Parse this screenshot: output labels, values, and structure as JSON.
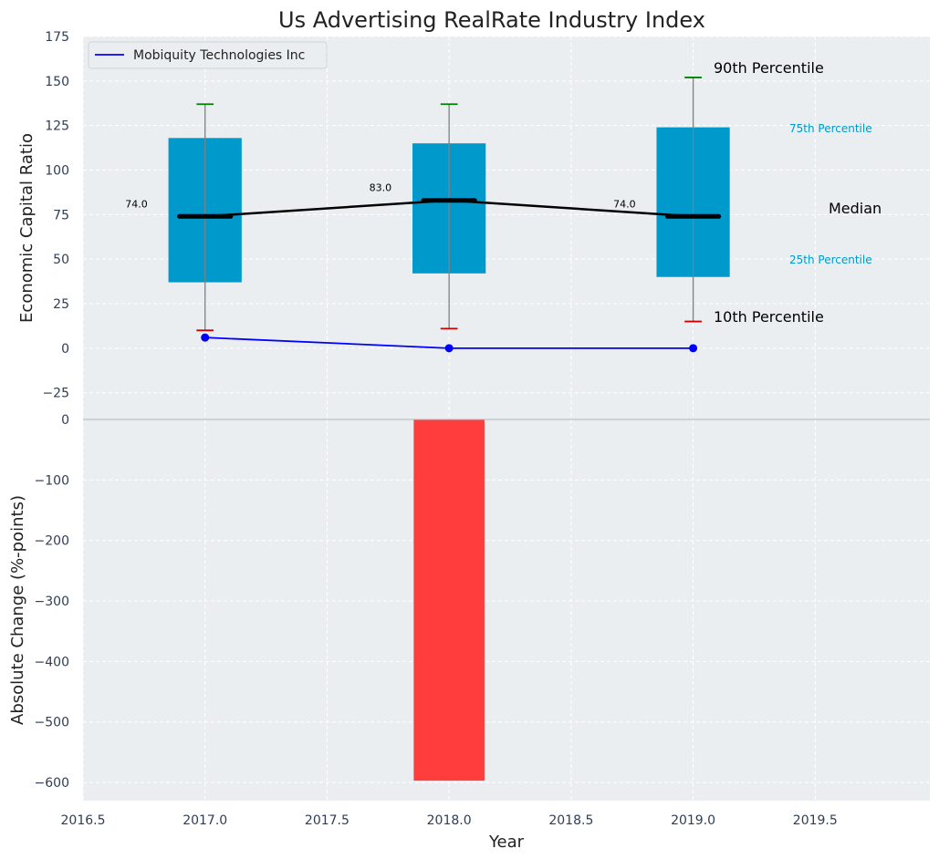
{
  "chart_data": [
    {
      "type": "box",
      "title": "Us Advertising RealRate Industry Index",
      "ylabel": "Economic Capital Ratio",
      "ylim": [
        -40,
        175
      ],
      "yticks": [
        -25,
        0,
        25,
        50,
        75,
        100,
        125,
        150,
        175
      ],
      "grid": true,
      "legend_position": "top-left",
      "boxes": [
        {
          "x": 2017,
          "p10": 10,
          "p25": 37,
          "median": 74,
          "p75": 118,
          "p90": 137,
          "median_label": "74.0"
        },
        {
          "x": 2018,
          "p10": 11,
          "p25": 42,
          "median": 83,
          "p75": 115,
          "p90": 137,
          "median_label": "83.0"
        },
        {
          "x": 2019,
          "p10": 15,
          "p25": 40,
          "median": 74,
          "p75": 124,
          "p90": 152,
          "median_label": "74.0"
        }
      ],
      "series": [
        {
          "name": "Mobiquity Technologies Inc",
          "x": [
            2017,
            2018,
            2019
          ],
          "y": [
            6,
            0,
            0
          ],
          "color": "#0000ff"
        }
      ],
      "annotations": {
        "p90": "90th Percentile",
        "p75": "75th Percentile",
        "median": "Median",
        "p25": "25th Percentile",
        "p10": "10th Percentile"
      },
      "colors": {
        "box": "#0099cc",
        "p90_cap": "#008000",
        "p10_cap": "#cc0000",
        "median_line": "#000000",
        "background": "#eaeef0"
      }
    },
    {
      "type": "bar",
      "xlabel": "Year",
      "ylabel": "Absolute Change (%-points)",
      "ylim": [
        -630,
        0
      ],
      "yticks": [
        -600,
        -500,
        -400,
        -300,
        -200,
        -100,
        0
      ],
      "xlim": [
        2016.5,
        2019.97
      ],
      "xticks": [
        "2016.5",
        "2017.0",
        "2017.5",
        "2018.0",
        "2018.5",
        "2019.0",
        "2019.5"
      ],
      "x": [
        2018
      ],
      "values": [
        -597
      ],
      "color": "#ff3d3d",
      "grid": true
    }
  ]
}
